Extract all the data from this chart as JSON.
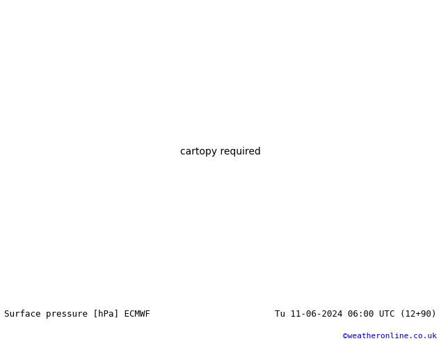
{
  "title_left": "Surface pressure [hPa] ECMWF",
  "title_right": "Tu 11-06-2024 06:00 UTC (12+90)",
  "copyright": "©weatheronline.co.uk",
  "background_color": "#ffffff",
  "text_color_left": "#000000",
  "text_color_right": "#000000",
  "text_color_copyright": "#0000cd",
  "font_size_labels": 9,
  "font_size_copyright": 8,
  "figure_width": 6.34,
  "figure_height": 4.9,
  "dpi": 100,
  "contour_color_low": "#0000ff",
  "contour_color_high": "#ff0000",
  "contour_color_base": "#000000",
  "contour_linewidth": 0.5,
  "contour_linewidth_base": 1.0,
  "label_fontsize": 5.0,
  "ocean_color": "#e8e8e8",
  "land_color": "#c8c8c8",
  "fill_high_colors": [
    "#b4e6b4",
    "#a0dca0",
    "#8cd28c",
    "#78c878"
  ],
  "fill_low_colors": [
    "#c8c8ff",
    "#b4b4ff",
    "#a0a0ff",
    "#8c8cff"
  ]
}
